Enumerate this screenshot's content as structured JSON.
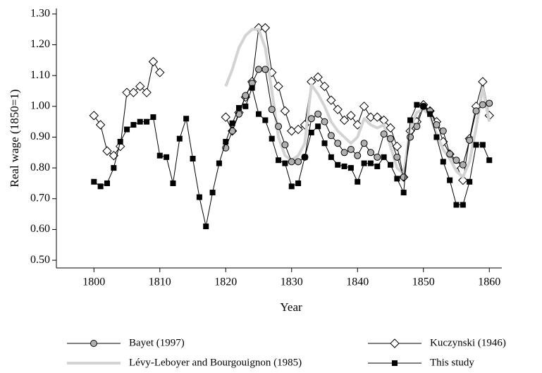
{
  "chart_data": {
    "type": "line",
    "x_label": "Year",
    "y_label": "Real wage (1850=1)",
    "x": [
      1800,
      1801,
      1802,
      1803,
      1804,
      1805,
      1806,
      1807,
      1808,
      1809,
      1810,
      1811,
      1812,
      1813,
      1814,
      1815,
      1816,
      1817,
      1818,
      1819,
      1820,
      1821,
      1822,
      1823,
      1824,
      1825,
      1826,
      1827,
      1828,
      1829,
      1830,
      1831,
      1832,
      1833,
      1834,
      1835,
      1836,
      1837,
      1838,
      1839,
      1840,
      1841,
      1842,
      1843,
      1844,
      1845,
      1846,
      1847,
      1848,
      1849,
      1850,
      1851,
      1852,
      1853,
      1854,
      1855,
      1856,
      1857,
      1858,
      1859,
      1860
    ],
    "xlim": [
      1794.3,
      1861.9
    ],
    "xticks": [
      1800,
      1810,
      1820,
      1830,
      1840,
      1850,
      1860
    ],
    "ylim": [
      0.475,
      1.318
    ],
    "yticks": [
      {
        "value": 0.5,
        "label": "0.50"
      },
      {
        "value": 0.6,
        "label": "0.60"
      },
      {
        "value": 0.7,
        "label": "0.70"
      },
      {
        "value": 0.8,
        "label": "0.80"
      },
      {
        "value": 0.9,
        "label": "0.90"
      },
      {
        "value": 1.0,
        "label": "1.00"
      },
      {
        "value": 1.1,
        "label": "1.10"
      },
      {
        "value": 1.2,
        "label": "1.20"
      },
      {
        "value": 1.3,
        "label": "1.30"
      }
    ],
    "legend": "bottom",
    "series": [
      {
        "name": "Bayet (1997)",
        "color": "#000000",
        "marker": "circle",
        "marker_fill": "#b0b0b0",
        "line_width": 1,
        "values": [
          null,
          null,
          null,
          null,
          null,
          null,
          null,
          null,
          null,
          null,
          null,
          null,
          null,
          null,
          null,
          null,
          null,
          null,
          null,
          null,
          0.865,
          0.92,
          0.975,
          1.035,
          1.075,
          1.12,
          1.12,
          0.99,
          0.935,
          0.875,
          0.82,
          0.82,
          0.835,
          0.96,
          0.975,
          0.95,
          0.905,
          0.88,
          0.85,
          0.86,
          0.84,
          0.88,
          0.85,
          0.835,
          0.91,
          0.895,
          0.835,
          0.77,
          0.9,
          0.935,
          1.0,
          0.985,
          0.94,
          0.92,
          0.845,
          0.825,
          0.81,
          0.89,
          0.985,
          1.005,
          1.01
        ]
      },
      {
        "name": "Kuczynski (1946)",
        "color": "#000000",
        "marker": "diamond",
        "marker_fill": "#ffffff",
        "line_width": 1,
        "values": [
          0.97,
          0.94,
          0.855,
          0.84,
          0.87,
          1.045,
          1.045,
          1.065,
          1.045,
          1.145,
          1.11,
          null,
          null,
          null,
          null,
          null,
          null,
          null,
          null,
          null,
          0.965,
          0.92,
          0.98,
          1.03,
          1.08,
          1.255,
          1.255,
          1.11,
          1.065,
          0.985,
          0.92,
          0.925,
          0.94,
          1.08,
          1.095,
          1.065,
          1.02,
          0.99,
          0.955,
          0.97,
          0.94,
          1.0,
          0.965,
          0.965,
          0.955,
          0.93,
          0.87,
          0.77,
          0.92,
          0.95,
          1.005,
          0.985,
          0.95,
          0.885,
          0.845,
          0.81,
          0.76,
          0.895,
          1.0,
          1.08,
          0.97
        ]
      },
      {
        "name": "Lévy-Leboyer and Bourgouignon (1985)",
        "color": "#d3d3d3",
        "marker": "none",
        "line_width": 4,
        "values": [
          null,
          null,
          null,
          null,
          null,
          null,
          null,
          null,
          null,
          null,
          null,
          null,
          null,
          null,
          null,
          null,
          null,
          null,
          null,
          null,
          1.065,
          1.12,
          1.19,
          1.23,
          1.25,
          1.25,
          1.19,
          1.05,
          0.9,
          0.84,
          0.825,
          0.84,
          0.88,
          1.07,
          1.04,
          1.0,
          0.95,
          0.92,
          0.9,
          0.88,
          0.9,
          0.96,
          0.94,
          0.93,
          0.94,
          0.87,
          0.8,
          0.78,
          0.93,
          0.98,
          0.99,
          0.97,
          0.91,
          0.86,
          0.83,
          0.79,
          0.77,
          0.82,
          0.93,
          1.06,
          0.95
        ]
      },
      {
        "name": "This study",
        "color": "#000000",
        "marker": "square",
        "marker_fill": "#000000",
        "line_width": 1,
        "values": [
          0.755,
          0.74,
          0.75,
          0.8,
          0.885,
          0.925,
          0.94,
          0.95,
          0.95,
          0.965,
          0.84,
          0.835,
          0.75,
          0.895,
          0.96,
          0.83,
          0.705,
          0.61,
          0.72,
          0.815,
          0.885,
          0.945,
          0.995,
          1.0,
          1.06,
          0.975,
          0.955,
          0.895,
          0.825,
          0.815,
          0.74,
          0.75,
          0.835,
          0.915,
          0.935,
          0.88,
          0.835,
          0.81,
          0.805,
          0.8,
          0.755,
          0.815,
          0.815,
          0.805,
          0.835,
          0.81,
          0.765,
          0.72,
          0.955,
          1.005,
          1.0,
          0.975,
          0.9,
          0.82,
          0.76,
          0.68,
          0.68,
          0.755,
          0.875,
          0.875,
          0.825
        ]
      }
    ]
  }
}
